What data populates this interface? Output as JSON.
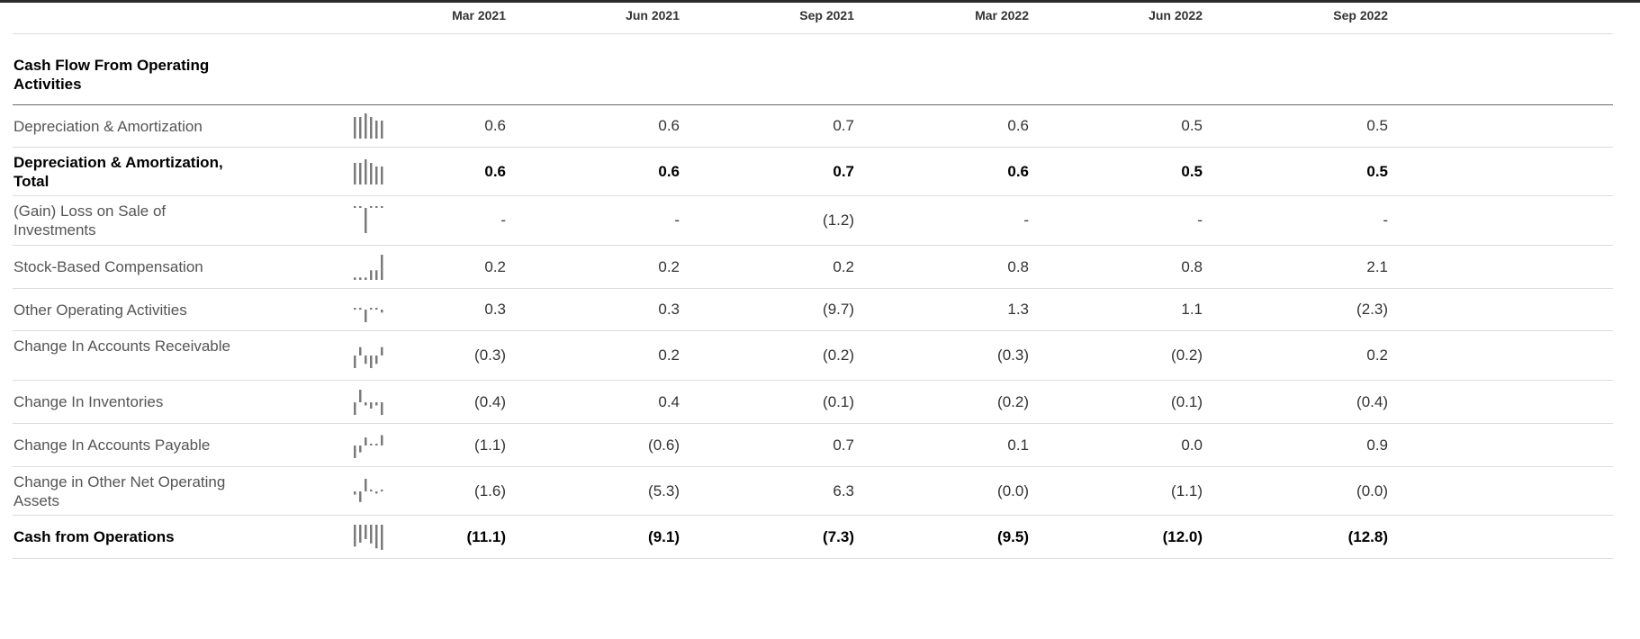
{
  "columns": [
    "Mar 2021",
    "Jun 2021",
    "Sep 2021",
    "Mar 2022",
    "Jun 2022",
    "Sep 2022"
  ],
  "section_title": "Cash Flow From Operating Activities",
  "rows": [
    {
      "label": "Depreciation & Amortization",
      "values": [
        "0.6",
        "0.6",
        "0.7",
        "0.6",
        "0.5",
        "0.5"
      ],
      "nums": [
        0.6,
        0.6,
        0.7,
        0.6,
        0.5,
        0.5
      ],
      "bold": false
    },
    {
      "label": "Depreciation & Amortization, Total",
      "values": [
        "0.6",
        "0.6",
        "0.7",
        "0.6",
        "0.5",
        "0.5"
      ],
      "nums": [
        0.6,
        0.6,
        0.7,
        0.6,
        0.5,
        0.5
      ],
      "bold": true
    },
    {
      "label": "(Gain) Loss on Sale of Investments",
      "values": [
        "-",
        "-",
        "(1.2)",
        "-",
        "-",
        "-"
      ],
      "nums": [
        0,
        0,
        -1.2,
        0,
        0,
        0
      ],
      "bold": false
    },
    {
      "label": "Stock-Based Compensation",
      "values": [
        "0.2",
        "0.2",
        "0.2",
        "0.8",
        "0.8",
        "2.1"
      ],
      "nums": [
        0.2,
        0.2,
        0.2,
        0.8,
        0.8,
        2.1
      ],
      "bold": false
    },
    {
      "label": "Other Operating Activities",
      "values": [
        "0.3",
        "0.3",
        "(9.7)",
        "1.3",
        "1.1",
        "(2.3)"
      ],
      "nums": [
        0.3,
        0.3,
        -9.7,
        1.3,
        1.1,
        -2.3
      ],
      "bold": false
    },
    {
      "label": "Change In Accounts Receivable",
      "values": [
        "(0.3)",
        "0.2",
        "(0.2)",
        "(0.3)",
        "(0.2)",
        "0.2"
      ],
      "nums": [
        -0.3,
        0.2,
        -0.2,
        -0.3,
        -0.2,
        0.2
      ],
      "bold": false
    },
    {
      "label": "Change In Inventories",
      "values": [
        "(0.4)",
        "0.4",
        "(0.1)",
        "(0.2)",
        "(0.1)",
        "(0.4)"
      ],
      "nums": [
        -0.4,
        0.4,
        -0.1,
        -0.2,
        -0.1,
        -0.4
      ],
      "bold": false
    },
    {
      "label": "Change In Accounts Payable",
      "values": [
        "(1.1)",
        "(0.6)",
        "0.7",
        "0.1",
        "0.0",
        "0.9"
      ],
      "nums": [
        -1.1,
        -0.6,
        0.7,
        0.1,
        0.0,
        0.9
      ],
      "bold": false
    },
    {
      "label": "Change in Other Net Operating Assets",
      "values": [
        "(1.6)",
        "(5.3)",
        "6.3",
        "(0.0)",
        "(1.1)",
        "(0.0)"
      ],
      "nums": [
        -1.6,
        -5.3,
        6.3,
        -0.0,
        -1.1,
        -0.0
      ],
      "bold": false
    },
    {
      "label": "Cash from Operations",
      "values": [
        "(11.1)",
        "(9.1)",
        "(7.3)",
        "(9.5)",
        "(12.0)",
        "(12.8)"
      ],
      "nums": [
        -11.1,
        -9.1,
        -7.3,
        -9.5,
        -12.0,
        -12.8
      ],
      "bold": true
    }
  ],
  "colors": {
    "spark": "#7a7a7a",
    "text": "#555555",
    "bold_text": "#000000"
  }
}
